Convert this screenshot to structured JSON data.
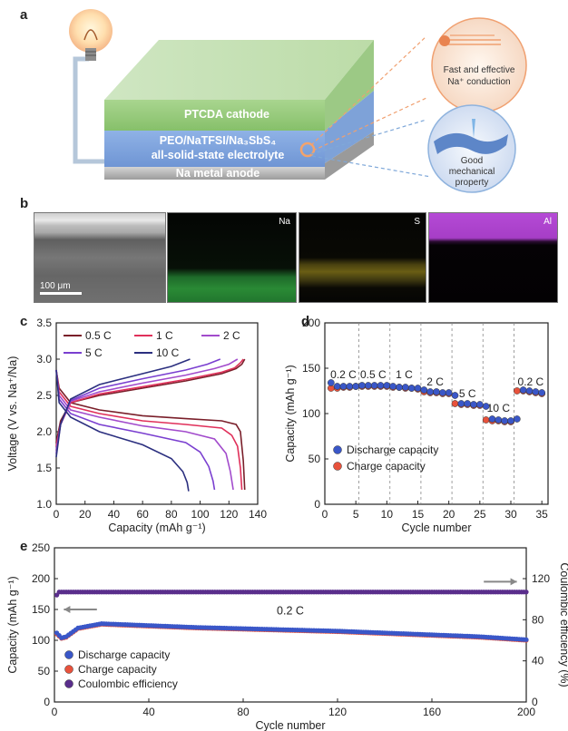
{
  "panel_a": {
    "letter": "a",
    "layers": [
      "PTCDA cathode",
      "PEO/NaTFSI/Na₃SbS₄",
      "all-solid-state electrolyte",
      "Na metal anode"
    ],
    "callouts": [
      {
        "lines": [
          "Fast and effective",
          "Na⁺ conduction"
        ]
      },
      {
        "lines": [
          "Good",
          "mechanical",
          "property"
        ]
      }
    ]
  },
  "panel_b": {
    "letter": "b",
    "scale_bar": "100 μm",
    "maps": [
      {
        "label": "Na",
        "color": "#1f9e3a"
      },
      {
        "label": "S",
        "color": "#c9b21a"
      },
      {
        "label": "Al",
        "color": "#b03ad0"
      }
    ]
  },
  "panel_c": {
    "letter": "c"
  },
  "panel_d": {
    "letter": "d"
  },
  "panel_e": {
    "letter": "e"
  },
  "chart_data": [
    {
      "panel": "c",
      "type": "line",
      "xlabel": "Capacity (mAh g⁻¹)",
      "ylabel": "Voltage (V vs. Na⁺/Na)",
      "xlim": [
        0,
        140
      ],
      "ylim": [
        1.0,
        3.5
      ],
      "xticks": [
        0,
        20,
        40,
        60,
        80,
        100,
        120,
        140
      ],
      "yticks": [
        1.0,
        1.5,
        2.0,
        2.5,
        3.0,
        3.5
      ],
      "legend": "top-left",
      "series": [
        {
          "name": "0.5 C",
          "color": "#7a1f2a",
          "charge": {
            "x": [
              0,
              3,
              10,
              30,
              60,
              90,
              115,
              125,
              129,
              131
            ],
            "y": [
              1.85,
              2.15,
              2.4,
              2.5,
              2.6,
              2.7,
              2.8,
              2.87,
              2.93,
              3.0
            ]
          },
          "discharge": {
            "x": [
              0,
              2,
              10,
              30,
              60,
              90,
              115,
              125,
              128,
              130,
              131
            ],
            "y": [
              2.85,
              2.6,
              2.4,
              2.3,
              2.22,
              2.18,
              2.15,
              2.1,
              2.0,
              1.6,
              1.2
            ]
          }
        },
        {
          "name": "1 C",
          "color": "#e0305a",
          "charge": {
            "x": [
              0,
              3,
              10,
              30,
              60,
              90,
              115,
              124,
              128,
              130
            ],
            "y": [
              1.8,
              2.1,
              2.4,
              2.52,
              2.62,
              2.72,
              2.82,
              2.88,
              2.95,
              3.0
            ]
          },
          "discharge": {
            "x": [
              0,
              2,
              10,
              30,
              60,
              90,
              115,
              122,
              126,
              128,
              129
            ],
            "y": [
              2.85,
              2.55,
              2.35,
              2.25,
              2.15,
              2.1,
              2.05,
              1.95,
              1.8,
              1.5,
              1.2
            ]
          }
        },
        {
          "name": "2 C",
          "color": "#a24bcc",
          "charge": {
            "x": [
              0,
              3,
              10,
              30,
              60,
              90,
              110,
              120,
              126
            ],
            "y": [
              1.75,
              2.1,
              2.42,
              2.55,
              2.67,
              2.78,
              2.87,
              2.93,
              3.0
            ]
          },
          "discharge": {
            "x": [
              0,
              2,
              10,
              30,
              60,
              90,
              110,
              118,
              121,
              123
            ],
            "y": [
              2.85,
              2.5,
              2.3,
              2.2,
              2.08,
              2.0,
              1.9,
              1.7,
              1.45,
              1.2
            ]
          }
        },
        {
          "name": "5 C",
          "color": "#7a3fd0",
          "charge": {
            "x": [
              0,
              3,
              10,
              30,
              60,
              90,
              105,
              114
            ],
            "y": [
              1.7,
              2.1,
              2.43,
              2.6,
              2.73,
              2.85,
              2.93,
              3.0
            ]
          },
          "discharge": {
            "x": [
              0,
              2,
              10,
              30,
              60,
              90,
              100,
              106,
              109,
              110
            ],
            "y": [
              2.85,
              2.45,
              2.25,
              2.1,
              1.98,
              1.85,
              1.72,
              1.52,
              1.32,
              1.2
            ]
          }
        },
        {
          "name": "10 C",
          "color": "#2b2f7f",
          "charge": {
            "x": [
              0,
              3,
              10,
              30,
              60,
              80,
              93
            ],
            "y": [
              1.65,
              2.1,
              2.45,
              2.65,
              2.8,
              2.9,
              3.0
            ]
          },
          "discharge": {
            "x": [
              0,
              2,
              10,
              30,
              60,
              80,
              88,
              91,
              92
            ],
            "y": [
              2.85,
              2.4,
              2.2,
              2.0,
              1.82,
              1.63,
              1.45,
              1.3,
              1.18
            ]
          }
        }
      ]
    },
    {
      "panel": "d",
      "type": "scatter",
      "xlabel": "Cycle number",
      "ylabel": "Capacity (mAh g⁻¹)",
      "xlim": [
        0,
        36
      ],
      "ylim": [
        0,
        200
      ],
      "xticks": [
        0,
        5,
        10,
        15,
        20,
        25,
        30,
        35
      ],
      "yticks": [
        0,
        50,
        100,
        150,
        200
      ],
      "rate_labels": [
        {
          "text": "0.2 C",
          "x": 3.0,
          "y": 139
        },
        {
          "text": "0.5 C",
          "x": 7.8,
          "y": 139
        },
        {
          "text": "1 C",
          "x": 12.8,
          "y": 139
        },
        {
          "text": "2 C",
          "x": 17.8,
          "y": 131
        },
        {
          "text": "5 C",
          "x": 23.0,
          "y": 118
        },
        {
          "text": "10 C",
          "x": 28.0,
          "y": 102
        },
        {
          "text": "0.2 C",
          "x": 33.2,
          "y": 131
        }
      ],
      "dividers": [
        5.5,
        10.5,
        15.5,
        20.5,
        25.5,
        30.5
      ],
      "legend": "lower-left",
      "series": [
        {
          "name": "Discharge capacity",
          "color": "#3a57c8",
          "x": [
            1,
            2,
            3,
            4,
            5,
            6,
            7,
            8,
            9,
            10,
            11,
            12,
            13,
            14,
            15,
            16,
            17,
            18,
            19,
            20,
            21,
            22,
            23,
            24,
            25,
            26,
            27,
            28,
            29,
            30,
            31,
            32,
            33,
            34,
            35
          ],
          "y": [
            134,
            130,
            130,
            130,
            130,
            131,
            131,
            131,
            131,
            131,
            130,
            129,
            129,
            128,
            128,
            126,
            124,
            124,
            123,
            123,
            120,
            111,
            111,
            110,
            110,
            108,
            94,
            93,
            92,
            92,
            94,
            126,
            125,
            124,
            123
          ]
        },
        {
          "name": "Charge capacity",
          "color": "#e8523c",
          "x": [
            1,
            2,
            3,
            4,
            5,
            6,
            7,
            8,
            9,
            10,
            11,
            12,
            13,
            14,
            15,
            16,
            17,
            18,
            19,
            20,
            21,
            22,
            23,
            24,
            25,
            26,
            27,
            28,
            29,
            30,
            31,
            32,
            33,
            34,
            35
          ],
          "y": [
            128,
            128,
            129,
            129,
            130,
            130,
            130,
            130,
            130,
            130,
            129,
            129,
            128,
            128,
            127,
            124,
            123,
            123,
            122,
            122,
            111,
            110,
            110,
            109,
            109,
            93,
            92,
            92,
            91,
            91,
            125,
            125,
            124,
            123,
            122
          ]
        }
      ]
    },
    {
      "panel": "e",
      "type": "scatter",
      "xlabel": "Cycle number",
      "ylabel": "Capacity (mAh g⁻¹)",
      "y2label": "Coulombic efficiency (%)",
      "xlim": [
        0,
        200
      ],
      "ylim": [
        0,
        250
      ],
      "y2lim": [
        0,
        150
      ],
      "xticks": [
        0,
        40,
        80,
        120,
        160,
        200
      ],
      "yticks": [
        0,
        50,
        100,
        150,
        200,
        250
      ],
      "y2ticks": [
        0,
        40,
        80,
        120
      ],
      "annotation": "0.2 C",
      "legend": "lower-left",
      "series": [
        {
          "name": "Discharge capacity",
          "color": "#3a57c8",
          "axis": "left",
          "x": [
            1,
            3,
            5,
            10,
            20,
            40,
            60,
            80,
            100,
            120,
            140,
            160,
            180,
            200
          ],
          "y": [
            112,
            104,
            106,
            120,
            127,
            124,
            121,
            119,
            117,
            115,
            112,
            109,
            106,
            101
          ]
        },
        {
          "name": "Charge capacity",
          "color": "#e8523c",
          "axis": "left",
          "x": [
            1,
            3,
            5,
            10,
            20,
            40,
            60,
            80,
            100,
            120,
            140,
            160,
            180,
            200
          ],
          "y": [
            110,
            103,
            105,
            119,
            126,
            123,
            120,
            118,
            116,
            114,
            111,
            108,
            105,
            100
          ]
        },
        {
          "name": "Coulombic efficiency",
          "color": "#5a2e8c",
          "axis": "right",
          "x": [
            1,
            2,
            3,
            5,
            10,
            40,
            80,
            120,
            160,
            200
          ],
          "y": [
            104,
            107,
            107,
            107,
            107,
            107,
            107,
            107,
            107,
            107
          ]
        }
      ]
    }
  ]
}
